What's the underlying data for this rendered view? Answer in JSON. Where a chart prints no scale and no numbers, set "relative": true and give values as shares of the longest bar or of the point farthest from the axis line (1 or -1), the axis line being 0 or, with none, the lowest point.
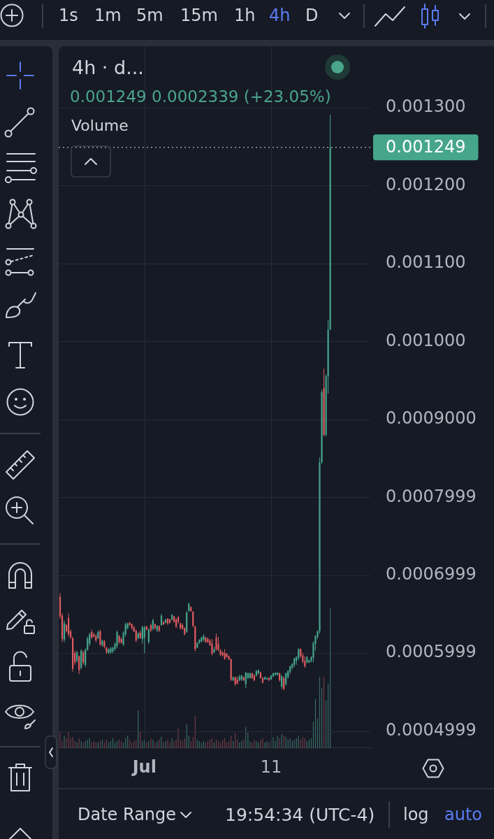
{
  "chart_data": [
    {
      "type": "candlestick",
      "title": "4h · d...",
      "subtitle": "0.001249 0.0002339 (+23.05%)",
      "categories": [
        null,
        null,
        null,
        null,
        null,
        null,
        null,
        null,
        null,
        null,
        null,
        null,
        null,
        null,
        null,
        null,
        null,
        null,
        null,
        null,
        null,
        null,
        null,
        null,
        null,
        null,
        null,
        null,
        null,
        null,
        null,
        null,
        null,
        null,
        null,
        null,
        null,
        null,
        null,
        null,
        "Jul",
        null,
        null,
        null,
        null,
        null,
        null,
        null,
        null,
        null,
        null,
        null,
        null,
        null,
        null,
        null,
        null,
        null,
        null,
        null,
        null,
        null,
        null,
        null,
        null,
        null,
        null,
        null,
        null,
        null,
        null,
        null,
        null,
        null,
        null,
        null,
        null,
        null,
        null,
        null,
        null,
        null,
        null,
        null,
        null,
        null,
        null,
        null,
        null,
        null,
        null,
        null,
        null,
        null,
        null,
        null,
        null,
        null,
        null,
        null,
        "11",
        null,
        null,
        null,
        null,
        null,
        null,
        null,
        null,
        null,
        null,
        null,
        null,
        null,
        null,
        null,
        null,
        null,
        null,
        null,
        null,
        null,
        null,
        null,
        null,
        null,
        null,
        null,
        null
      ],
      "ohlc": [
        [
          0.000672,
          0.000677,
          0.000644,
          0.000647
        ],
        [
          0.000648,
          0.000651,
          0.000614,
          0.000618
        ],
        [
          0.000617,
          0.000642,
          0.000614,
          0.000638
        ],
        [
          0.000636,
          0.000637,
          0.000626,
          0.000628
        ],
        [
          0.000645,
          0.000651,
          0.000621,
          0.000624
        ],
        [
          0.000628,
          0.00063,
          0.000618,
          0.00062
        ],
        [
          0.000619,
          0.000621,
          0.000576,
          0.00058
        ],
        [
          0.0006,
          0.000603,
          0.000585,
          0.000588
        ],
        [
          0.00059,
          0.000603,
          0.000588,
          0.000601
        ],
        [
          0.000596,
          0.000597,
          0.000573,
          0.000578
        ],
        [
          0.000581,
          0.000605,
          0.000579,
          0.000603
        ],
        [
          0.000601,
          0.000603,
          0.000585,
          0.000588
        ],
        [
          0.000585,
          0.000606,
          0.000582,
          0.000604
        ],
        [
          0.000604,
          0.000621,
          0.000603,
          0.000619
        ],
        [
          0.000612,
          0.000626,
          0.000609,
          0.000624
        ],
        [
          0.000627,
          0.00063,
          0.000618,
          0.00062
        ],
        [
          0.000624,
          0.000626,
          0.00062,
          0.000621
        ],
        [
          0.000622,
          0.000624,
          0.000614,
          0.000616
        ],
        [
          0.000619,
          0.000629,
          0.000618,
          0.000627
        ],
        [
          0.000628,
          0.00063,
          0.000609,
          0.000611
        ],
        [
          0.00061,
          0.000617,
          0.000608,
          0.000616
        ],
        [
          0.000615,
          0.000617,
          0.000606,
          0.000608
        ],
        [
          0.000607,
          0.000608,
          0.000599,
          0.000601
        ],
        [
          0.0006,
          0.000606,
          0.000599,
          0.000605
        ],
        [
          0.000601,
          0.000608,
          0.000599,
          0.000606
        ],
        [
          0.000602,
          0.000608,
          0.0006,
          0.000607
        ],
        [
          0.000605,
          0.000614,
          0.000603,
          0.000612
        ],
        [
          0.000609,
          0.000629,
          0.000606,
          0.000627
        ],
        [
          0.000622,
          0.000623,
          0.000612,
          0.000614
        ],
        [
          0.000618,
          0.00062,
          0.000612,
          0.000613
        ],
        [
          0.000611,
          0.000628,
          0.000609,
          0.000626
        ],
        [
          0.000624,
          0.000639,
          0.000621,
          0.000637
        ],
        [
          0.000632,
          0.000639,
          0.00063,
          0.000638
        ],
        [
          0.000639,
          0.00064,
          0.000635,
          0.000636
        ],
        [
          0.000637,
          0.000638,
          0.00063,
          0.000632
        ],
        [
          0.000633,
          0.000635,
          0.000627,
          0.000628
        ],
        [
          0.000629,
          0.00063,
          0.000614,
          0.000616
        ],
        [
          0.000619,
          0.000627,
          0.000618,
          0.000625
        ],
        [
          0.000626,
          0.000629,
          0.000618,
          0.00062
        ],
        [
          0.000618,
          0.000635,
          0.000612,
          0.000633
        ],
        [
          0.00062,
          0.000635,
          0.0006,
          0.000633
        ],
        [
          0.000634,
          0.000635,
          0.000629,
          0.00063
        ],
        [
          0.000614,
          0.000632,
          0.000612,
          0.00063
        ],
        [
          0.000636,
          0.000638,
          0.000627,
          0.000629
        ],
        [
          0.000631,
          0.000644,
          0.000629,
          0.000642
        ],
        [
          0.000637,
          0.000638,
          0.00063,
          0.000632
        ],
        [
          0.000629,
          0.000636,
          0.000627,
          0.000635
        ],
        [
          0.000634,
          0.000636,
          0.000627,
          0.000629
        ],
        [
          0.000636,
          0.00065,
          0.000635,
          0.000648
        ],
        [
          0.00064,
          0.000641,
          0.000636,
          0.000637
        ],
        [
          0.000639,
          0.000644,
          0.000638,
          0.000643
        ],
        [
          0.000644,
          0.000645,
          0.000636,
          0.000638
        ],
        [
          0.000643,
          0.000644,
          0.000638,
          0.000639
        ],
        [
          0.000643,
          0.00065,
          0.000642,
          0.000649
        ],
        [
          0.000647,
          0.000648,
          0.000639,
          0.00064
        ],
        [
          0.000643,
          0.000645,
          0.000632,
          0.000634
        ],
        [
          0.000646,
          0.000648,
          0.000638,
          0.00064
        ],
        [
          0.000638,
          0.000639,
          0.00063,
          0.000632
        ],
        [
          0.000636,
          0.000638,
          0.00063,
          0.000631
        ],
        [
          0.000632,
          0.000633,
          0.000623,
          0.000624
        ],
        [
          0.000627,
          0.000654,
          0.000626,
          0.000652
        ],
        [
          0.000654,
          0.000665,
          0.000653,
          0.000663
        ],
        [
          0.000659,
          0.00066,
          0.000653,
          0.000654
        ],
        [
          0.000653,
          0.000654,
          0.000633,
          0.000635
        ],
        [
          0.000634,
          0.000635,
          0.000602,
          0.000605
        ],
        [
          0.000607,
          0.000614,
          0.000606,
          0.000613
        ],
        [
          0.000613,
          0.000618,
          0.000612,
          0.000617
        ],
        [
          0.000615,
          0.000621,
          0.000614,
          0.00062
        ],
        [
          0.000617,
          0.000624,
          0.000615,
          0.000622
        ],
        [
          0.00062,
          0.000621,
          0.000613,
          0.000614
        ],
        [
          0.000618,
          0.00062,
          0.000613,
          0.000614
        ],
        [
          0.000616,
          0.000618,
          0.000609,
          0.00061
        ],
        [
          0.000612,
          0.000618,
          0.000597,
          0.000599
        ],
        [
          0.000601,
          0.000608,
          0.0006,
          0.000605
        ],
        [
          0.00062,
          0.000625,
          0.000603,
          0.000605
        ],
        [
          0.000612,
          0.000621,
          0.000602,
          0.000604
        ],
        [
          0.000604,
          0.000605,
          0.000596,
          0.000598
        ],
        [
          0.000601,
          0.000602,
          0.000596,
          0.000597
        ],
        [
          0.0006,
          0.000605,
          0.000591,
          0.000593
        ],
        [
          0.000599,
          0.0006,
          0.000594,
          0.000595
        ],
        [
          0.000596,
          0.000597,
          0.000591,
          0.000592
        ],
        [
          0.000592,
          0.000593,
          0.000564,
          0.000566
        ],
        [
          0.000565,
          0.00057,
          0.000564,
          0.000569
        ],
        [
          0.000569,
          0.00057,
          0.000558,
          0.00056
        ],
        [
          0.000566,
          0.00057,
          0.00056,
          0.000561
        ],
        [
          0.000565,
          0.000572,
          0.000564,
          0.00057
        ],
        [
          0.000566,
          0.000572,
          0.000564,
          0.000571
        ],
        [
          0.000569,
          0.00057,
          0.000564,
          0.000565
        ],
        [
          0.00056,
          0.000576,
          0.000555,
          0.000575
        ],
        [
          0.000568,
          0.000575,
          0.000567,
          0.000574
        ],
        [
          0.000568,
          0.000575,
          0.000567,
          0.000574
        ],
        [
          0.000574,
          0.000575,
          0.000567,
          0.000568
        ],
        [
          0.000571,
          0.000573,
          0.000564,
          0.000565
        ],
        [
          0.000571,
          0.000578,
          0.00057,
          0.000577
        ],
        [
          0.000574,
          0.000579,
          0.000573,
          0.000578
        ],
        [
          0.000575,
          0.000576,
          0.000567,
          0.000568
        ],
        [
          0.000568,
          0.000569,
          0.000561,
          0.000562
        ],
        [
          0.000566,
          0.00057,
          0.000566,
          0.000569
        ],
        [
          0.000566,
          0.000569,
          0.000566,
          0.000568
        ],
        [
          0.000568,
          0.000569,
          0.000564,
          0.000565
        ],
        [
          0.000566,
          0.000572,
          0.000566,
          0.000571
        ],
        [
          0.00057,
          0.000575,
          0.000569,
          0.000574
        ],
        [
          0.000572,
          0.000575,
          0.000571,
          0.000575
        ],
        [
          0.000572,
          0.000575,
          0.000571,
          0.000575
        ],
        [
          0.000574,
          0.000575,
          0.000563,
          0.000565
        ],
        [
          0.000557,
          0.000572,
          0.000554,
          0.00057
        ],
        [
          0.000568,
          0.00057,
          0.000552,
          0.000554
        ],
        [
          0.00056,
          0.000575,
          0.000558,
          0.000574
        ],
        [
          0.000569,
          0.000578,
          0.000567,
          0.000577
        ],
        [
          0.000576,
          0.000584,
          0.000573,
          0.000583
        ],
        [
          0.000581,
          0.000587,
          0.000579,
          0.000586
        ],
        [
          0.000585,
          0.000594,
          0.000582,
          0.000593
        ],
        [
          0.00059,
          0.000596,
          0.000585,
          0.000595
        ],
        [
          0.000594,
          0.000606,
          0.000591,
          0.000605
        ],
        [
          0.000605,
          0.000606,
          0.000594,
          0.000596
        ],
        [
          0.000597,
          0.0006,
          0.000587,
          0.000589
        ],
        [
          0.00059,
          0.000596,
          0.000581,
          0.000583
        ],
        [
          0.000588,
          0.000596,
          0.000587,
          0.000595
        ],
        [
          0.000588,
          0.000591,
          0.000587,
          0.000591
        ],
        [
          0.00059,
          0.000596,
          0.000588,
          0.000595
        ],
        [
          0.000594,
          0.000615,
          0.000588,
          0.000613
        ],
        [
          0.000612,
          0.000623,
          0.000603,
          0.000622
        ],
        [
          0.000621,
          0.000629,
          0.000618,
          0.000628
        ],
        [
          0.000628,
          0.000851,
          0.000625,
          0.000845
        ],
        [
          0.000845,
          0.000938,
          0.000843,
          0.000935
        ],
        [
          0.00094,
          0.000965,
          0.000878,
          0.00088
        ],
        [
          0.00088,
          0.000958,
          0.000878,
          0.000955
        ],
        [
          0.000955,
          0.001027,
          0.000933,
          0.001015
        ],
        [
          0.001015,
          0.001291,
          0.001015,
          0.001249
        ]
      ],
      "colors": [
        "#e05c60",
        "#e05c60",
        "#46a68c",
        "#e05c60",
        "#e05c60",
        "#e05c60",
        "#e05c60",
        "#e05c60",
        "#46a68c",
        "#e05c60",
        "#46a68c",
        "#e05c60",
        "#46a68c",
        "#46a68c",
        "#46a68c",
        "#e05c60",
        "#e05c60",
        "#e05c60",
        "#46a68c",
        "#e05c60",
        "#46a68c",
        "#e05c60",
        "#e05c60",
        "#46a68c",
        "#46a68c",
        "#46a68c",
        "#46a68c",
        "#46a68c",
        "#e05c60",
        "#e05c60",
        "#46a68c",
        "#46a68c",
        "#46a68c",
        "#e05c60",
        "#e05c60",
        "#e05c60",
        "#e05c60",
        "#46a68c",
        "#e05c60",
        "#46a68c",
        "#46a68c",
        "#e05c60",
        "#46a68c",
        "#e05c60",
        "#46a68c",
        "#e05c60",
        "#46a68c",
        "#e05c60",
        "#46a68c",
        "#e05c60",
        "#46a68c",
        "#e05c60",
        "#e05c60",
        "#46a68c",
        "#e05c60",
        "#e05c60",
        "#e05c60",
        "#e05c60",
        "#e05c60",
        "#e05c60",
        "#46a68c",
        "#46a68c",
        "#e05c60",
        "#e05c60",
        "#e05c60",
        "#46a68c",
        "#46a68c",
        "#46a68c",
        "#46a68c",
        "#e05c60",
        "#e05c60",
        "#e05c60",
        "#e05c60",
        "#46a68c",
        "#e05c60",
        "#e05c60",
        "#e05c60",
        "#e05c60",
        "#e05c60",
        "#e05c60",
        "#e05c60",
        "#e05c60",
        "#46a68c",
        "#e05c60",
        "#e05c60",
        "#46a68c",
        "#46a68c",
        "#e05c60",
        "#46a68c",
        "#46a68c",
        "#46a68c",
        "#e05c60",
        "#e05c60",
        "#46a68c",
        "#46a68c",
        "#e05c60",
        "#e05c60",
        "#46a68c",
        "#46a68c",
        "#e05c60",
        "#46a68c",
        "#46a68c",
        "#46a68c",
        "#46a68c",
        "#e05c60",
        "#46a68c",
        "#e05c60",
        "#46a68c",
        "#46a68c",
        "#46a68c",
        "#46a68c",
        "#46a68c",
        "#46a68c",
        "#46a68c",
        "#e05c60",
        "#e05c60",
        "#e05c60",
        "#46a68c",
        "#46a68c",
        "#46a68c",
        "#46a68c",
        "#46a68c",
        "#46a68c",
        "#46a68c",
        "#46a68c",
        "#e05c60",
        "#46a68c",
        "#46a68c",
        "#46a68c"
      ],
      "ylim": [
        0.000478,
        0.001379
      ],
      "yticks": [
        0.0004999,
        0.0005999,
        0.0006999,
        0.0007999,
        {
          "value": 0.0009,
          "label": "0.0009000"
        },
        {
          "value": 0.001,
          "label": "0.001000"
        },
        {
          "value": 0.0011,
          "label": "0.001100"
        },
        {
          "value": 0.0012,
          "label": "0.001200"
        },
        {
          "value": 0.0013,
          "label": "0.001300"
        }
      ],
      "grid": true,
      "ref_lines": [
        {
          "axis": "y",
          "value": 0.001249,
          "label": "0.001249",
          "color": "#9598a1",
          "line_style": "dotted"
        }
      ],
      "annotations": [
        "1s",
        "1m",
        "5m",
        "15m",
        "1h",
        "4h",
        "D",
        "Date Range",
        "19:54:34 (UTC-4)",
        "log",
        "auto"
      ]
    },
    {
      "type": "bar",
      "relative": true,
      "title": "Volume",
      "categories": [
        null,
        null,
        null,
        null,
        null,
        null,
        null,
        null,
        null,
        null,
        null,
        null,
        null,
        null,
        null,
        null,
        null,
        null,
        null,
        null,
        null,
        null,
        null,
        null,
        null,
        null,
        null,
        null,
        null,
        null,
        null,
        null,
        null,
        null,
        null,
        null,
        null,
        null,
        null,
        null,
        null,
        null,
        null,
        null,
        null,
        null,
        null,
        null,
        null,
        null,
        null,
        null,
        null,
        null,
        null,
        null,
        null,
        null,
        null,
        null,
        null,
        null,
        null,
        null,
        null,
        null,
        null,
        null,
        null,
        null,
        null,
        null,
        null,
        null,
        null,
        null,
        null,
        null,
        null,
        null,
        null,
        null,
        null,
        null,
        null,
        null,
        null,
        null,
        null,
        null,
        null,
        null,
        null,
        null,
        null,
        null,
        null,
        null,
        null,
        null,
        null,
        null,
        null,
        null,
        null,
        null,
        null,
        null,
        null,
        null,
        null,
        null,
        null,
        null,
        null,
        null,
        null,
        null,
        null,
        null,
        null,
        null,
        null,
        null,
        null,
        null,
        null,
        null,
        null
      ],
      "values": [
        0.12,
        0.05,
        0.09,
        0.07,
        0.12,
        0.07,
        0.08,
        0.05,
        0.04,
        0.07,
        0.05,
        0.04,
        0.05,
        0.06,
        0.07,
        0.04,
        0.05,
        0.04,
        0.04,
        0.05,
        0.06,
        0.04,
        0.06,
        0.04,
        0.05,
        0.07,
        0.04,
        0.05,
        0.06,
        0.05,
        0.04,
        0.07,
        0.09,
        0.06,
        0.04,
        0.05,
        0.06,
        0.27,
        0.12,
        0.05,
        0.06,
        0.04,
        0.05,
        0.07,
        0.06,
        0.04,
        0.05,
        0.06,
        0.08,
        0.04,
        0.05,
        0.06,
        0.04,
        0.07,
        0.05,
        0.06,
        0.14,
        0.06,
        0.05,
        0.07,
        0.17,
        0.09,
        0.05,
        0.08,
        0.23,
        0.06,
        0.05,
        0.04,
        0.05,
        0.04,
        0.05,
        0.06,
        0.07,
        0.04,
        0.06,
        0.05,
        0.04,
        0.06,
        0.07,
        0.04,
        0.05,
        0.09,
        0.05,
        0.11,
        0.06,
        0.04,
        0.05,
        0.06,
        0.15,
        0.11,
        0.05,
        0.04,
        0.06,
        0.05,
        0.04,
        0.06,
        0.07,
        0.04,
        0.05,
        0.04,
        0.06,
        0.08,
        0.05,
        0.09,
        0.07,
        0.1,
        0.09,
        0.08,
        0.06,
        0.07,
        0.05,
        0.06,
        0.07,
        0.09,
        0.06,
        0.08,
        0.07,
        0.05,
        0.06,
        0.07,
        0.19,
        0.35,
        0.21,
        0.51,
        0.43,
        0.51,
        0.34,
        0.46,
        1
      ],
      "colors": [
        "#6e3d47",
        "#6e3d47",
        "#3a6a63",
        "#6e3d47",
        "#6e3d47",
        "#6e3d47",
        "#6e3d47",
        "#6e3d47",
        "#3a6a63",
        "#6e3d47",
        "#3a6a63",
        "#6e3d47",
        "#3a6a63",
        "#3a6a63",
        "#3a6a63",
        "#6e3d47",
        "#6e3d47",
        "#6e3d47",
        "#3a6a63",
        "#6e3d47",
        "#3a6a63",
        "#6e3d47",
        "#6e3d47",
        "#3a6a63",
        "#3a6a63",
        "#3a6a63",
        "#3a6a63",
        "#3a6a63",
        "#6e3d47",
        "#6e3d47",
        "#3a6a63",
        "#3a6a63",
        "#3a6a63",
        "#6e3d47",
        "#6e3d47",
        "#6e3d47",
        "#6e3d47",
        "#3a6a63",
        "#6e3d47",
        "#3a6a63",
        "#3a6a63",
        "#6e3d47",
        "#3a6a63",
        "#6e3d47",
        "#3a6a63",
        "#6e3d47",
        "#3a6a63",
        "#6e3d47",
        "#3a6a63",
        "#6e3d47",
        "#3a6a63",
        "#6e3d47",
        "#6e3d47",
        "#3a6a63",
        "#6e3d47",
        "#6e3d47",
        "#6e3d47",
        "#6e3d47",
        "#6e3d47",
        "#6e3d47",
        "#3a6a63",
        "#3a6a63",
        "#6e3d47",
        "#6e3d47",
        "#6e3d47",
        "#3a6a63",
        "#3a6a63",
        "#3a6a63",
        "#3a6a63",
        "#6e3d47",
        "#6e3d47",
        "#6e3d47",
        "#6e3d47",
        "#3a6a63",
        "#6e3d47",
        "#6e3d47",
        "#6e3d47",
        "#6e3d47",
        "#6e3d47",
        "#6e3d47",
        "#6e3d47",
        "#6e3d47",
        "#3a6a63",
        "#6e3d47",
        "#6e3d47",
        "#3a6a63",
        "#3a6a63",
        "#6e3d47",
        "#3a6a63",
        "#3a6a63",
        "#3a6a63",
        "#6e3d47",
        "#6e3d47",
        "#3a6a63",
        "#3a6a63",
        "#6e3d47",
        "#6e3d47",
        "#3a6a63",
        "#3a6a63",
        "#6e3d47",
        "#3a6a63",
        "#3a6a63",
        "#3a6a63",
        "#3a6a63",
        "#6e3d47",
        "#3a6a63",
        "#6e3d47",
        "#3a6a63",
        "#3a6a63",
        "#3a6a63",
        "#3a6a63",
        "#3a6a63",
        "#3a6a63",
        "#3a6a63",
        "#6e3d47",
        "#6e3d47",
        "#6e3d47",
        "#3a6a63",
        "#3a6a63",
        "#3a6a63",
        "#3a6a63",
        "#3a6a63",
        "#3a6a63",
        "#3a6a63",
        "#3a6a63",
        "#6e3d47",
        "#3a6a63",
        "#3a6a63",
        "#3a6a63"
      ]
    }
  ]
}
